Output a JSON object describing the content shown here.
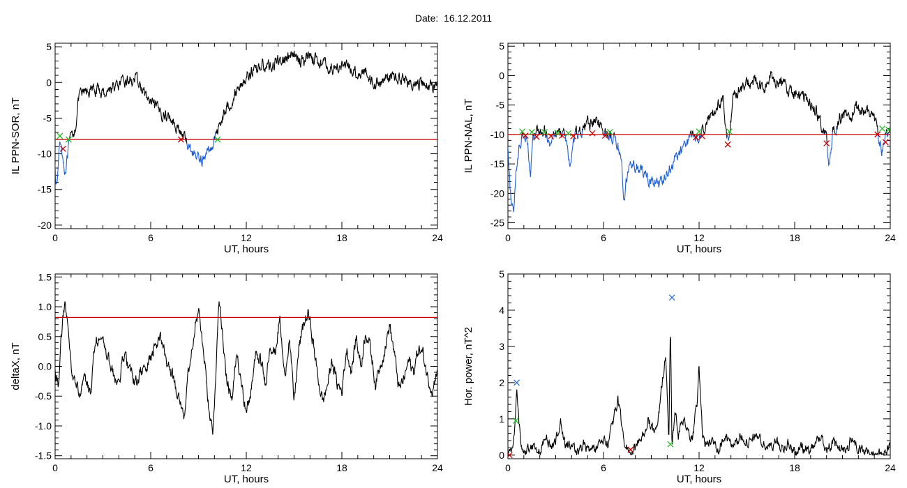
{
  "header": {
    "date_label": "Date:",
    "date_value": "16.12.2011"
  },
  "colors": {
    "trace": "#000000",
    "threshold": "#cc0000",
    "low_segment": "#1f5fd6",
    "marker_green": "#22bb22",
    "marker_red": "#cc0000",
    "marker_blue": "#3070d8"
  },
  "chart_data": [
    {
      "type": "line",
      "ylabel": "IL PPN-SOR, nT",
      "xlabel": "UT, hours",
      "xlim": [
        0,
        24
      ],
      "ylim": [
        -20.5,
        5.5
      ],
      "x_ticks": [
        0,
        6,
        12,
        18,
        24
      ],
      "y_ticks": [
        5,
        0,
        -5,
        -10,
        -15,
        -20
      ],
      "threshold": -8,
      "noise": 0.7,
      "series": [
        {
          "x": [
            0,
            0.1,
            0.3,
            0.45,
            0.6,
            0.75,
            0.9,
            1.05,
            1.25,
            1.5,
            2.0,
            2.5,
            3.0,
            3.5,
            4.0,
            4.5,
            5.0,
            5.3,
            5.6,
            6.0,
            6.5,
            7.0,
            7.5,
            7.9,
            8.3,
            8.7,
            9.0,
            9.3,
            9.7,
            10.0,
            10.2,
            10.5,
            11.0,
            11.5,
            12.0,
            12.5,
            13.0,
            13.5,
            14.0,
            14.5,
            15.0,
            15.5,
            16.0,
            16.5,
            17.0,
            17.5,
            18.0,
            18.5,
            19.0,
            19.5,
            20.0,
            20.5,
            21.0,
            21.5,
            22.0,
            22.5,
            23.0,
            23.5,
            24.0
          ],
          "y": [
            -11,
            -15,
            -8,
            -9.5,
            -12.5,
            -11,
            -8.5,
            -7.5,
            -6.5,
            -2,
            -1.2,
            -1,
            -1.5,
            -0.8,
            -0.5,
            0.2,
            0.5,
            -0.3,
            -1.5,
            -3,
            -4,
            -4.7,
            -5.5,
            -7.2,
            -8.5,
            -10,
            -10.5,
            -10.8,
            -9.5,
            -8,
            -6.5,
            -4.8,
            -2.8,
            -0.8,
            0.8,
            1.8,
            2.5,
            2.2,
            3,
            3.3,
            3.6,
            3,
            3.8,
            3.2,
            2.4,
            1.8,
            2.6,
            1.8,
            1.2,
            1.6,
            -0.2,
            0.2,
            0.8,
            0.9,
            0.4,
            -0.6,
            -0.1,
            -0.5,
            -0.3
          ]
        }
      ],
      "markers": [
        {
          "x": 0.3,
          "y": -7.5,
          "color": "green"
        },
        {
          "x": 0.5,
          "y": -9.3,
          "color": "red"
        },
        {
          "x": 0.85,
          "y": -8,
          "color": "green"
        },
        {
          "x": 7.9,
          "y": -8,
          "color": "red"
        },
        {
          "x": 10.2,
          "y": -8,
          "color": "green"
        }
      ]
    },
    {
      "type": "line",
      "ylabel": "IL PPN-NAL, nT",
      "xlabel": "UT, hours",
      "xlim": [
        0,
        24
      ],
      "ylim": [
        -26,
        5.5
      ],
      "x_ticks": [
        0,
        6,
        12,
        18,
        24
      ],
      "y_ticks": [
        5,
        0,
        -5,
        -10,
        -15,
        -20,
        -25
      ],
      "threshold": -10,
      "noise": 0.9,
      "series": [
        {
          "x": [
            0,
            0.15,
            0.35,
            0.6,
            0.8,
            1.0,
            1.2,
            1.4,
            1.6,
            1.8,
            2.0,
            2.3,
            2.6,
            3.0,
            3.3,
            3.6,
            3.9,
            4.2,
            4.5,
            5.0,
            5.5,
            6.0,
            6.3,
            6.6,
            6.9,
            7.1,
            7.3,
            7.6,
            8.0,
            8.5,
            9.0,
            9.5,
            10.0,
            10.5,
            11.0,
            11.5,
            12.0,
            12.5,
            13.0,
            13.5,
            13.8,
            14.2,
            15.0,
            15.5,
            16.0,
            16.5,
            17.0,
            17.5,
            18.0,
            18.5,
            19.0,
            19.5,
            20.0,
            20.2,
            20.4,
            20.7,
            21.0,
            21.5,
            22.0,
            22.5,
            23.0,
            23.3,
            23.5,
            23.8,
            24.0
          ],
          "y": [
            -13,
            -20,
            -23,
            -14,
            -11,
            -9.5,
            -10,
            -17,
            -10.5,
            -9.5,
            -10,
            -9.5,
            -11,
            -10,
            -9.5,
            -10.5,
            -15.5,
            -10,
            -9.5,
            -8.5,
            -7.5,
            -9,
            -10.5,
            -10,
            -12,
            -14,
            -21,
            -15,
            -15.5,
            -16.5,
            -18,
            -18.5,
            -17,
            -14,
            -12.5,
            -10,
            -10.5,
            -8,
            -6,
            -4,
            -11.5,
            -3,
            -1.5,
            -1,
            -2.5,
            -0.5,
            -1,
            -2,
            -3,
            -4,
            -4.5,
            -7,
            -11,
            -15.5,
            -10,
            -8.5,
            -6.5,
            -7,
            -5.5,
            -6,
            -7,
            -10.5,
            -13,
            -9,
            -10
          ]
        }
      ],
      "markers": [
        {
          "x": 0.9,
          "y": -9.5,
          "color": "green"
        },
        {
          "x": 1.1,
          "y": -10.2,
          "color": "red"
        },
        {
          "x": 1.5,
          "y": -9.6,
          "color": "green"
        },
        {
          "x": 1.8,
          "y": -10.4,
          "color": "red"
        },
        {
          "x": 2.3,
          "y": -9.6,
          "color": "green"
        },
        {
          "x": 2.7,
          "y": -10.3,
          "color": "red"
        },
        {
          "x": 3.1,
          "y": -9.7,
          "color": "green"
        },
        {
          "x": 3.4,
          "y": -10.2,
          "color": "red"
        },
        {
          "x": 3.8,
          "y": -9.8,
          "color": "green"
        },
        {
          "x": 4.1,
          "y": -10.3,
          "color": "red"
        },
        {
          "x": 5.3,
          "y": -9.8,
          "color": "red"
        },
        {
          "x": 6.1,
          "y": -10.2,
          "color": "red"
        },
        {
          "x": 6.4,
          "y": -9.6,
          "color": "green"
        },
        {
          "x": 11.8,
          "y": -10.5,
          "color": "red"
        },
        {
          "x": 12.0,
          "y": -9.5,
          "color": "green"
        },
        {
          "x": 12.2,
          "y": -10.3,
          "color": "red"
        },
        {
          "x": 13.8,
          "y": -11.7,
          "color": "red"
        },
        {
          "x": 13.9,
          "y": -9.5,
          "color": "green"
        },
        {
          "x": 20.0,
          "y": -11.5,
          "color": "red"
        },
        {
          "x": 23.2,
          "y": -10,
          "color": "red"
        },
        {
          "x": 23.5,
          "y": -9,
          "color": "green"
        },
        {
          "x": 23.7,
          "y": -11.3,
          "color": "red"
        },
        {
          "x": 23.9,
          "y": -9.2,
          "color": "green"
        }
      ]
    },
    {
      "type": "line",
      "ylabel": "deltaX, nT",
      "xlabel": "UT, hours",
      "xlim": [
        0,
        24
      ],
      "ylim": [
        -1.55,
        1.55
      ],
      "x_ticks": [
        0,
        6,
        12,
        18,
        24
      ],
      "y_ticks": [
        1.5,
        1.0,
        0.5,
        0.0,
        -0.5,
        -1.0,
        -1.5
      ],
      "threshold": 0.82,
      "noise": 0.09,
      "series": [
        {
          "x": [
            0,
            0.2,
            0.4,
            0.6,
            0.8,
            1.0,
            1.3,
            1.6,
            1.9,
            2.2,
            2.5,
            2.8,
            3.1,
            3.4,
            3.7,
            4.0,
            4.3,
            4.6,
            5.0,
            5.4,
            5.8,
            6.2,
            6.6,
            7.0,
            7.4,
            7.8,
            8.1,
            8.5,
            8.8,
            9.0,
            9.3,
            9.6,
            9.9,
            10.1,
            10.3,
            10.5,
            10.8,
            11.1,
            11.4,
            11.7,
            12.0,
            12.3,
            12.6,
            12.9,
            13.2,
            13.5,
            13.8,
            14.1,
            14.4,
            14.7,
            15.0,
            15.3,
            15.6,
            15.9,
            16.2,
            16.5,
            16.8,
            17.1,
            17.4,
            17.7,
            18.0,
            18.3,
            18.6,
            18.9,
            19.2,
            19.5,
            19.8,
            20.1,
            20.4,
            20.7,
            21.0,
            21.3,
            21.6,
            21.9,
            22.2,
            22.5,
            22.8,
            23.1,
            23.4,
            23.7,
            24.0
          ],
          "y": [
            -0.1,
            -0.3,
            0.5,
            1.1,
            0.6,
            0.0,
            -0.3,
            -0.5,
            -0.2,
            -0.5,
            0.4,
            0.5,
            0.3,
            0.1,
            -0.2,
            -0.3,
            0.2,
            0.0,
            -0.3,
            -0.1,
            0.0,
            0.3,
            0.5,
            0.1,
            -0.2,
            -0.5,
            -0.8,
            0.2,
            0.7,
            0.9,
            0.3,
            -0.6,
            -1.2,
            0.0,
            1.2,
            0.6,
            -0.3,
            -0.6,
            0.2,
            -0.2,
            -0.8,
            -0.4,
            0.2,
            0.1,
            -0.3,
            0.4,
            0.2,
            0.8,
            -0.2,
            0.5,
            -0.6,
            0.3,
            0.7,
            0.9,
            0.4,
            -0.2,
            -0.6,
            -0.3,
            0.1,
            -0.3,
            -0.4,
            0.3,
            -0.1,
            0.5,
            0.0,
            0.6,
            0.3,
            -0.3,
            0.0,
            0.3,
            0.7,
            0.2,
            -0.4,
            -0.2,
            0.1,
            -0.1,
            0.3,
            0.2,
            -0.2,
            -0.4,
            0.0
          ]
        }
      ],
      "markers": []
    },
    {
      "type": "line",
      "ylabel": "Hor. power, nT^2",
      "xlabel": "UT, hours",
      "xlim": [
        0,
        24
      ],
      "ylim": [
        -0.1,
        5.0
      ],
      "x_ticks": [
        0,
        6,
        12,
        18,
        24
      ],
      "y_ticks": [
        5,
        4,
        3,
        2,
        1,
        0
      ],
      "noise": 0.12,
      "nonneg": true,
      "series": [
        {
          "x": [
            0,
            0.2,
            0.4,
            0.55,
            0.65,
            0.8,
            1.0,
            1.3,
            1.6,
            2.0,
            2.4,
            2.7,
            3.0,
            3.3,
            3.6,
            4.0,
            4.4,
            4.8,
            5.2,
            5.6,
            6.0,
            6.3,
            6.6,
            6.9,
            7.1,
            7.3,
            7.6,
            7.9,
            8.2,
            8.5,
            8.8,
            9.1,
            9.4,
            9.7,
            9.9,
            10.1,
            10.2,
            10.3,
            10.5,
            10.7,
            11.0,
            11.3,
            11.6,
            11.9,
            12.0,
            12.2,
            12.4,
            12.8,
            13.2,
            13.6,
            14.0,
            14.4,
            14.8,
            15.2,
            15.6,
            16.0,
            16.4,
            16.8,
            17.2,
            17.6,
            18.0,
            18.4,
            18.8,
            19.2,
            19.6,
            20.0,
            20.4,
            20.8,
            21.2,
            21.6,
            22.0,
            22.4,
            22.8,
            23.2,
            23.6,
            24.0
          ],
          "y": [
            0.0,
            0.1,
            0.6,
            1.9,
            1.1,
            0.4,
            0.1,
            0.2,
            0.3,
            0.1,
            0.5,
            0.2,
            0.4,
            0.9,
            0.3,
            0.2,
            0.1,
            0.3,
            0.1,
            0.2,
            0.4,
            0.3,
            0.9,
            1.5,
            1.0,
            0.3,
            0.2,
            0.1,
            0.3,
            0.6,
            1.0,
            0.7,
            0.8,
            2.1,
            2.8,
            0.4,
            3.8,
            0.3,
            1.2,
            0.5,
            1.0,
            0.6,
            0.4,
            1.6,
            2.5,
            0.6,
            0.3,
            0.4,
            0.2,
            0.5,
            0.3,
            0.4,
            0.5,
            0.3,
            0.6,
            0.3,
            0.2,
            0.4,
            0.2,
            0.3,
            0.1,
            0.2,
            0.1,
            0.3,
            0.5,
            0.2,
            0.3,
            0.2,
            0.1,
            0.5,
            0.1,
            0.1,
            0.05,
            0.1,
            0.05,
            0.2
          ]
        }
      ],
      "markers": [
        {
          "x": 0.1,
          "y": 0.0,
          "color": "red"
        },
        {
          "x": 0.55,
          "y": 2.0,
          "color": "blue"
        },
        {
          "x": 0.5,
          "y": 0.95,
          "color": "green"
        },
        {
          "x": 7.7,
          "y": 0.15,
          "color": "red"
        },
        {
          "x": 10.3,
          "y": 4.35,
          "color": "blue"
        },
        {
          "x": 10.2,
          "y": 0.3,
          "color": "green"
        }
      ]
    }
  ]
}
